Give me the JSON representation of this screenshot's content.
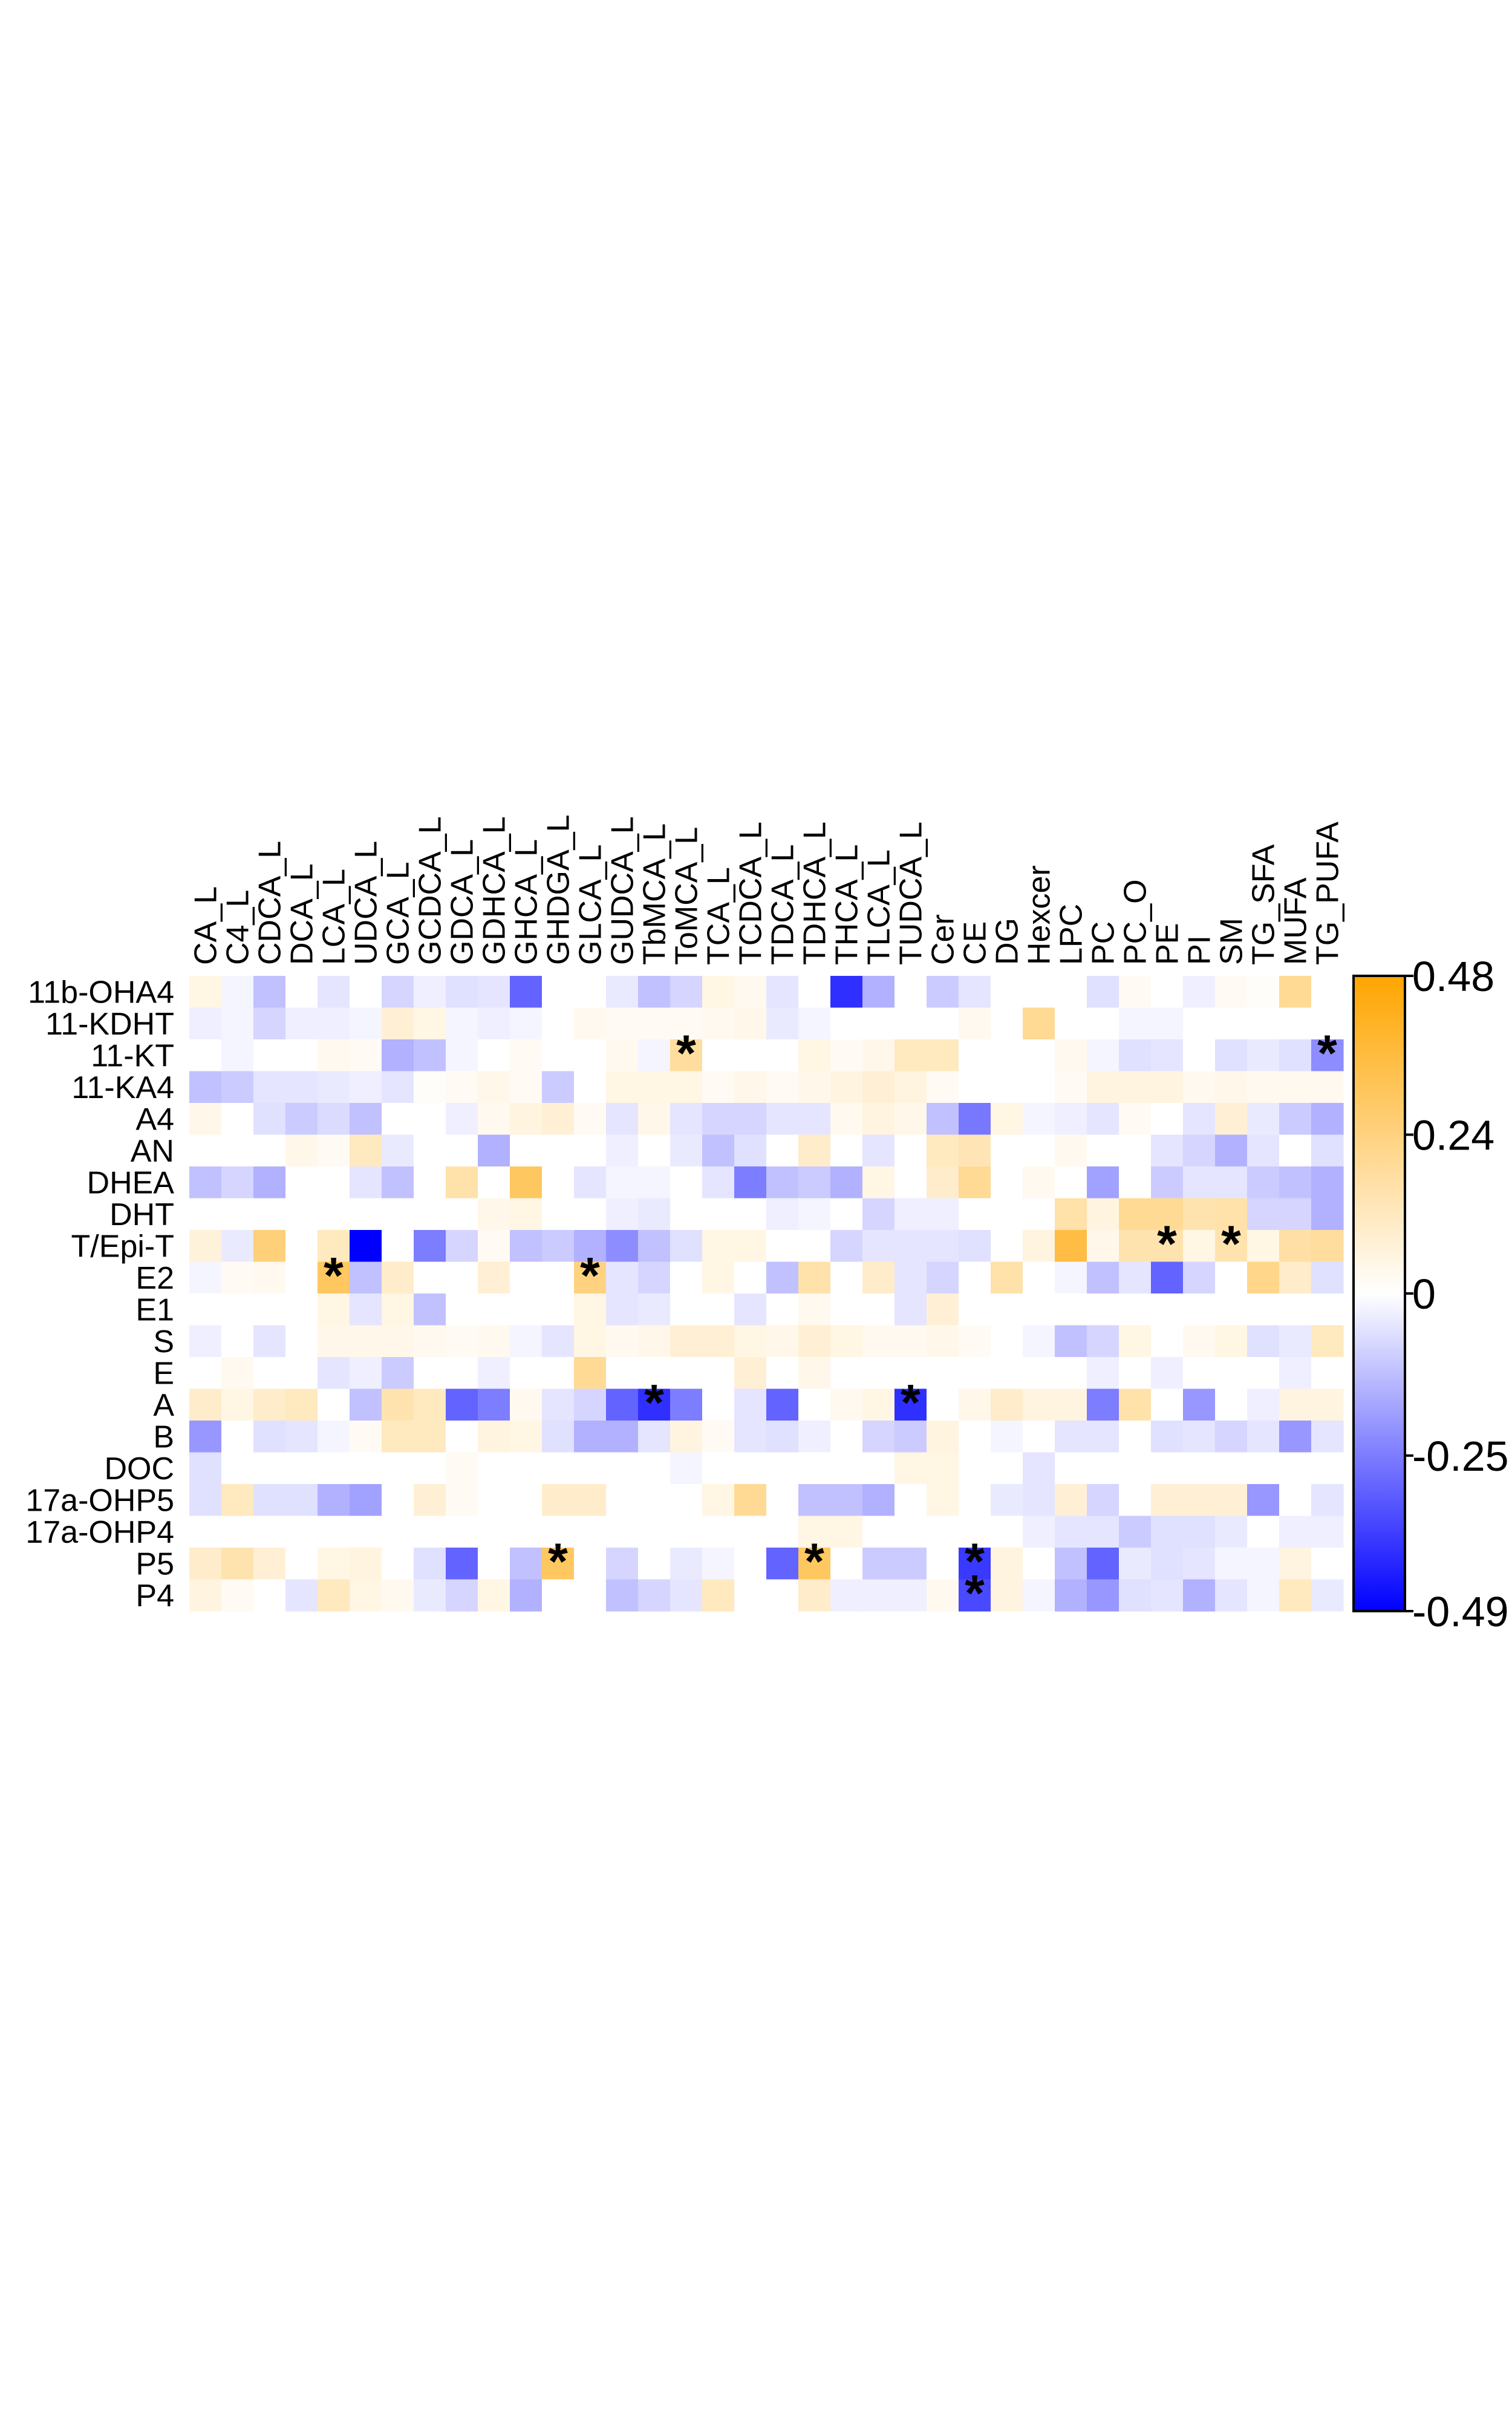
{
  "chart_data": {
    "type": "heatmap",
    "title": "",
    "xlabel": "",
    "ylabel": "",
    "columns": [
      "CA_L",
      "C4_L",
      "CDCA_L",
      "DCA_L",
      "LCA_L",
      "UDCA_L",
      "GCA_L",
      "GCDCA_L",
      "GDCA_L",
      "GDHCA_L",
      "GHCA_L",
      "GHDGA_L",
      "GLCA_L",
      "GUDCA_L",
      "TbMCA_L",
      "ToMCA_L",
      "TCA_L",
      "TCDCA_L",
      "TDCA_L",
      "TDHCA_L",
      "THCA_L",
      "TLCA_L",
      "TUDCA_L",
      "Cer",
      "CE",
      "DG",
      "Hexcer",
      "LPC",
      "PC",
      "PC_O",
      "PE",
      "PI",
      "SM",
      "TG_SFA",
      "MUFA",
      "TG_PUFA"
    ],
    "rows": [
      "11b-OHA4",
      "11-KDHT",
      "11-KT",
      "11-KA4",
      "A4",
      "AN",
      "DHEA",
      "DHT",
      "T/Epi-T",
      "E2",
      "E1",
      "S",
      "E",
      "A",
      "B",
      "DOC",
      "17a-OHP5",
      "17a-OHP4",
      "P5",
      "P4"
    ],
    "colorbar": {
      "ticks": [
        "0.48",
        "0.24",
        "0",
        "-0.25",
        "-0.49"
      ],
      "min": -0.49,
      "max": 0.48,
      "colors": {
        "low": "#0000ff",
        "mid": "#ffffff",
        "high": "#ffa500"
      }
    },
    "significance_marker": "*",
    "significant_cells": [
      [
        2,
        15
      ],
      [
        2,
        35
      ],
      [
        8,
        30
      ],
      [
        8,
        32
      ],
      [
        9,
        4
      ],
      [
        9,
        12
      ],
      [
        13,
        14
      ],
      [
        13,
        22
      ],
      [
        18,
        11
      ],
      [
        18,
        19
      ],
      [
        18,
        24
      ],
      [
        19,
        24
      ]
    ],
    "values": [
      [
        0.05,
        -0.02,
        -0.12,
        0,
        -0.05,
        0,
        -0.08,
        -0.03,
        -0.06,
        -0.05,
        -0.3,
        0,
        0,
        -0.04,
        -0.12,
        -0.08,
        0.05,
        0.03,
        -0.05,
        0,
        -0.4,
        -0.15,
        0,
        -0.1,
        -0.05,
        0,
        0,
        0,
        -0.06,
        0.02,
        0,
        -0.03,
        0.02,
        0.01,
        0.2,
        0
      ],
      [
        -0.03,
        -0.02,
        -0.08,
        -0.03,
        -0.03,
        -0.02,
        0.08,
        0.05,
        -0.02,
        -0.03,
        -0.02,
        0,
        0.03,
        0.02,
        0.02,
        0.02,
        0.03,
        0.04,
        -0.04,
        -0.02,
        0,
        0,
        0,
        0,
        0.03,
        0,
        0.2,
        0,
        0,
        -0.02,
        -0.02,
        0,
        0,
        0,
        0,
        0
      ],
      [
        0,
        -0.02,
        0,
        0,
        0.03,
        0.02,
        -0.15,
        -0.12,
        -0.02,
        0,
        0.02,
        0,
        0,
        0.03,
        -0.02,
        0.18,
        0,
        0,
        0,
        0.05,
        0.02,
        0.04,
        0.12,
        0.12,
        0,
        0,
        0,
        0.03,
        -0.02,
        -0.06,
        -0.05,
        0,
        -0.06,
        -0.04,
        -0.06,
        -0.22
      ],
      [
        -0.12,
        -0.1,
        -0.05,
        -0.05,
        -0.04,
        -0.03,
        -0.05,
        0.01,
        0.02,
        0.04,
        0.02,
        -0.1,
        0,
        0.05,
        0.05,
        0.05,
        0.02,
        0.04,
        0.02,
        0.04,
        0.06,
        0.08,
        0.06,
        0.02,
        0,
        0,
        0,
        0.02,
        0.06,
        0.06,
        0.06,
        0.03,
        0.04,
        0.03,
        0.03,
        0.03
      ],
      [
        0.04,
        0,
        -0.06,
        -0.1,
        -0.07,
        -0.12,
        0,
        0,
        -0.03,
        0.03,
        0.06,
        0.08,
        0.02,
        -0.05,
        0.04,
        -0.05,
        -0.08,
        -0.08,
        -0.05,
        -0.05,
        0.03,
        0.06,
        0.04,
        -0.12,
        -0.26,
        0.05,
        -0.02,
        -0.03,
        -0.05,
        0.02,
        0,
        -0.05,
        0.08,
        -0.04,
        -0.1,
        -0.15
      ],
      [
        0,
        0,
        0,
        0.04,
        0.02,
        0.12,
        -0.04,
        0,
        0,
        -0.15,
        0,
        0,
        0,
        -0.03,
        0,
        -0.04,
        -0.12,
        -0.06,
        0,
        0.1,
        0,
        -0.05,
        0,
        0.12,
        0.14,
        0,
        0,
        0.03,
        0,
        0,
        -0.05,
        -0.08,
        -0.15,
        -0.05,
        0,
        -0.06
      ],
      [
        -0.12,
        -0.08,
        -0.15,
        0,
        0,
        -0.05,
        -0.12,
        0,
        0.16,
        0,
        0.3,
        0,
        -0.05,
        -0.02,
        -0.02,
        0,
        -0.05,
        -0.25,
        -0.12,
        -0.1,
        -0.15,
        0.05,
        0,
        0.1,
        0.2,
        0,
        0.03,
        0,
        -0.18,
        0,
        -0.1,
        -0.05,
        -0.05,
        -0.1,
        -0.12,
        -0.15
      ],
      [
        0,
        0,
        0,
        0,
        0,
        0,
        0,
        0,
        0,
        0.04,
        0.05,
        0,
        0,
        -0.03,
        -0.04,
        0,
        0,
        0,
        -0.03,
        -0.02,
        0,
        -0.08,
        -0.03,
        -0.03,
        0,
        0,
        0,
        0.16,
        0.06,
        0.2,
        0.2,
        0.15,
        0.16,
        -0.08,
        -0.08,
        -0.15
      ],
      [
        0.07,
        -0.04,
        0.25,
        0,
        0.12,
        -0.49,
        0,
        -0.25,
        -0.08,
        0.02,
        -0.12,
        -0.1,
        -0.15,
        -0.22,
        -0.12,
        -0.06,
        0.05,
        0.05,
        0,
        0,
        -0.08,
        -0.05,
        -0.05,
        -0.05,
        -0.06,
        0,
        0.06,
        0.35,
        0.04,
        0.15,
        0.15,
        0.05,
        0.15,
        0.05,
        0.17,
        0.18
      ],
      [
        -0.02,
        0.02,
        0.03,
        0,
        0.3,
        -0.12,
        0.1,
        0,
        0,
        0.08,
        0,
        0,
        0.24,
        -0.05,
        -0.08,
        0,
        0.05,
        0,
        -0.12,
        0.16,
        0,
        0.1,
        -0.05,
        -0.08,
        0,
        0.16,
        0,
        -0.02,
        -0.12,
        -0.05,
        -0.3,
        -0.08,
        0,
        0.22,
        0.1,
        -0.06
      ],
      [
        0,
        0,
        0,
        0,
        0.05,
        -0.05,
        0.05,
        -0.12,
        0,
        0,
        0,
        0,
        0.05,
        -0.05,
        -0.04,
        0,
        0,
        -0.05,
        0,
        0.03,
        0,
        0,
        -0.05,
        0.08,
        0,
        0,
        0,
        0,
        0,
        0,
        0,
        0,
        0,
        0,
        0,
        0
      ],
      [
        -0.03,
        0,
        -0.05,
        0,
        0.04,
        0.04,
        0.04,
        0.03,
        0.02,
        0.03,
        -0.02,
        -0.05,
        0.05,
        0.03,
        0.04,
        0.08,
        0.08,
        0.05,
        0.04,
        0.08,
        0.05,
        0.03,
        0.03,
        0.04,
        0.02,
        0,
        -0.02,
        -0.12,
        -0.08,
        0.05,
        0,
        0.03,
        0.05,
        -0.06,
        -0.04,
        0.12
      ],
      [
        0,
        0.03,
        0,
        0,
        -0.05,
        -0.03,
        -0.1,
        0,
        0,
        -0.03,
        0,
        0,
        0.2,
        0,
        0,
        0,
        0,
        0.08,
        0,
        0.04,
        0,
        0,
        0,
        0,
        0,
        0,
        0,
        0,
        -0.03,
        0,
        -0.03,
        0,
        0,
        0,
        -0.03,
        0
      ],
      [
        0.1,
        0.05,
        0.1,
        0.12,
        0,
        -0.12,
        0.15,
        0.12,
        -0.3,
        -0.25,
        0.03,
        -0.05,
        -0.08,
        -0.3,
        -0.4,
        -0.25,
        0,
        -0.05,
        -0.3,
        0,
        0.03,
        0.05,
        -0.4,
        0,
        0.04,
        0.1,
        0.06,
        0.06,
        -0.25,
        0.16,
        0,
        -0.2,
        0,
        -0.03,
        0.06,
        0.06
      ],
      [
        -0.2,
        0,
        -0.06,
        -0.05,
        -0.02,
        0.02,
        0.12,
        0.12,
        0,
        0.06,
        0.05,
        -0.06,
        -0.15,
        -0.15,
        -0.05,
        0.06,
        0.02,
        -0.05,
        -0.06,
        -0.03,
        0,
        -0.08,
        -0.1,
        0.06,
        0,
        -0.02,
        0,
        -0.05,
        -0.05,
        0,
        -0.06,
        -0.05,
        -0.08,
        -0.05,
        -0.2,
        -0.05
      ],
      [
        -0.06,
        0,
        0,
        0,
        0,
        0,
        0,
        0,
        0.02,
        0,
        0,
        0,
        0,
        0,
        0,
        -0.02,
        0,
        0,
        0,
        0,
        0,
        0,
        0.05,
        0.05,
        0,
        0,
        -0.05,
        0,
        0,
        0,
        0,
        0,
        0,
        0,
        0,
        0
      ],
      [
        -0.06,
        0.12,
        -0.06,
        -0.06,
        -0.15,
        -0.18,
        0,
        0.08,
        0.02,
        0,
        0,
        0.1,
        0.1,
        0,
        0,
        0,
        0.05,
        0.2,
        0,
        -0.12,
        -0.12,
        -0.15,
        0,
        0.05,
        0,
        -0.04,
        -0.05,
        0.08,
        -0.08,
        0,
        0.08,
        0.08,
        0.08,
        -0.2,
        0,
        -0.05
      ],
      [
        0,
        0,
        0,
        0,
        0,
        0,
        0,
        0,
        0,
        0,
        0,
        0,
        0,
        0,
        0,
        0,
        0,
        0,
        0,
        0.05,
        0.05,
        0,
        0,
        0,
        0,
        0,
        -0.03,
        -0.05,
        -0.05,
        -0.1,
        -0.06,
        -0.06,
        -0.04,
        0,
        -0.03,
        -0.03
      ],
      [
        0.1,
        0.15,
        0.08,
        0,
        0.05,
        0.06,
        0,
        -0.06,
        -0.3,
        0,
        -0.12,
        0.3,
        0,
        -0.08,
        0,
        -0.04,
        -0.02,
        0,
        -0.3,
        0.3,
        0,
        -0.1,
        -0.1,
        0,
        -0.38,
        0.06,
        0,
        -0.12,
        -0.3,
        -0.04,
        -0.06,
        -0.05,
        -0.02,
        -0.02,
        0.06,
        0
      ],
      [
        0.06,
        0.02,
        0,
        -0.05,
        0.12,
        0.05,
        0.03,
        -0.04,
        -0.08,
        0.05,
        -0.15,
        0,
        0,
        -0.12,
        -0.08,
        -0.05,
        0.12,
        0,
        0,
        0.1,
        -0.03,
        -0.03,
        -0.03,
        0.03,
        -0.35,
        0.06,
        -0.02,
        -0.15,
        -0.2,
        -0.06,
        -0.05,
        -0.15,
        -0.05,
        -0.02,
        0.12,
        -0.04
      ]
    ]
  }
}
